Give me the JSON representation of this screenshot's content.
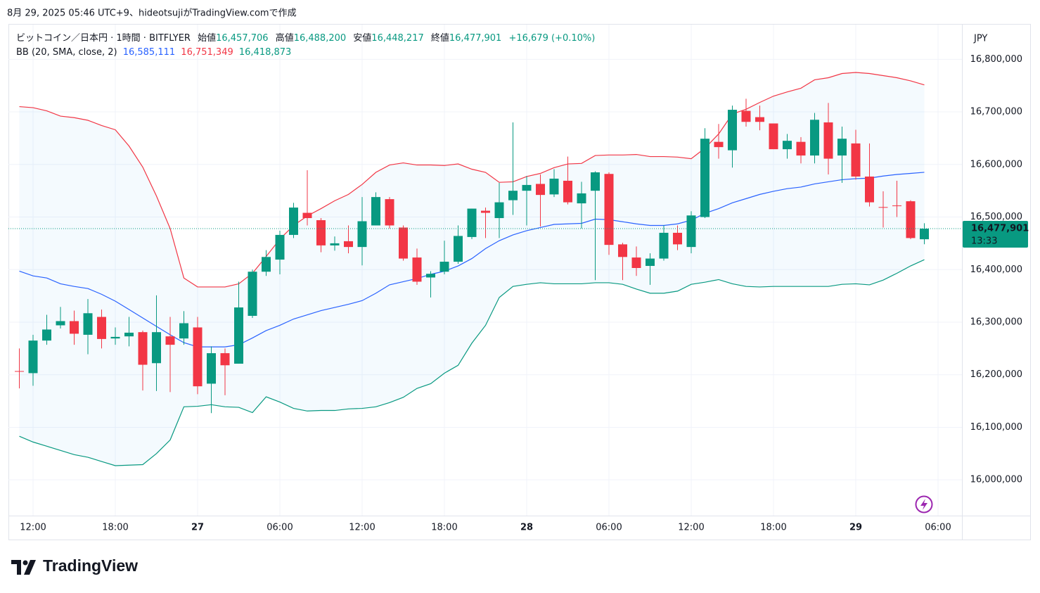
{
  "header": {
    "caption": "8月 29, 2025 05:46 UTC+9、hideotsujiがTradingView.comで作成"
  },
  "footer": {
    "brand": "TradingView"
  },
  "chart_data": {
    "type": "candlestick",
    "title": "ビットコイン／日本円 · 1時間 · BITFLYER",
    "ohlc_labels": {
      "open": "始値",
      "high": "高値",
      "low": "安値",
      "close": "終値"
    },
    "ohlc_value_labels": {
      "open": "16,457,706",
      "high": "16,488,200",
      "low": "16,448,217",
      "close": "16,477,901"
    },
    "change_label": "+16,679 (+0.10%)",
    "countdown": "13:33",
    "currency": "JPY",
    "up_color": "#089981",
    "down_color": "#f23645",
    "grid": true,
    "xlim": [
      -1.795,
      67.744
    ],
    "ylim": [
      15932000,
      16866000
    ],
    "xticks": [
      {
        "value": 0,
        "label": "12:00"
      },
      {
        "value": 6,
        "label": "18:00"
      },
      {
        "value": 12,
        "label": "27"
      },
      {
        "value": 18,
        "label": "06:00"
      },
      {
        "value": 24,
        "label": "12:00"
      },
      {
        "value": 30,
        "label": "18:00"
      },
      {
        "value": 36,
        "label": "28"
      },
      {
        "value": 42,
        "label": "06:00"
      },
      {
        "value": 48,
        "label": "12:00"
      },
      {
        "value": 54,
        "label": "18:00"
      },
      {
        "value": 60,
        "label": "29"
      },
      {
        "value": 66,
        "label": "06:00"
      }
    ],
    "yticks": [
      {
        "value": 16000000,
        "label": "16,000,000"
      },
      {
        "value": 16100000,
        "label": "16,100,000"
      },
      {
        "value": 16200000,
        "label": "16,200,000"
      },
      {
        "value": 16300000,
        "label": "16,300,000"
      },
      {
        "value": 16400000,
        "label": "16,400,000"
      },
      {
        "value": 16500000,
        "label": "16,500,000"
      },
      {
        "value": 16600000,
        "label": "16,600,000"
      },
      {
        "value": 16700000,
        "label": "16,700,000"
      },
      {
        "value": 16800000,
        "label": "16,800,000"
      }
    ],
    "x": [
      -1,
      0,
      1,
      2,
      3,
      4,
      5,
      6,
      7,
      8,
      9,
      10,
      11,
      12,
      13,
      14,
      15,
      16,
      17,
      18,
      19,
      20,
      21,
      22,
      23,
      24,
      25,
      26,
      27,
      28,
      29,
      30,
      31,
      32,
      33,
      34,
      35,
      36,
      37,
      38,
      39,
      40,
      41,
      42,
      43,
      44,
      45,
      46,
      47,
      48,
      49,
      50,
      51,
      52,
      53,
      54,
      55,
      56,
      57,
      58,
      59,
      60,
      61,
      62,
      63,
      64,
      65
    ],
    "open": [
      16207000,
      16203000,
      16265000,
      16294000,
      16302000,
      16276000,
      16310000,
      16269000,
      16273000,
      16281000,
      16222000,
      16273000,
      16269000,
      16290000,
      16183000,
      16241000,
      16221000,
      16312000,
      16396000,
      16419000,
      16466000,
      16508000,
      16494000,
      16446000,
      16454000,
      16443000,
      16484000,
      16534000,
      16480000,
      16423000,
      16385000,
      16396000,
      16415000,
      16462000,
      16512000,
      16498000,
      16532000,
      16550000,
      16563000,
      16543000,
      16569000,
      16526000,
      16550000,
      16582000,
      16448000,
      16423000,
      16407000,
      16421000,
      16470000,
      16443000,
      16500000,
      16643000,
      16627000,
      16702000,
      16690000,
      16678000,
      16629000,
      16643000,
      16617000,
      16680000,
      16617000,
      16640000,
      16577000,
      16519000,
      16522000,
      16530000,
      16457706
    ],
    "high": [
      16250000,
      16276000,
      16314000,
      16329000,
      16322000,
      16344000,
      16324000,
      16290000,
      16310000,
      16284000,
      16351000,
      16310000,
      16321000,
      16310000,
      16254000,
      16250000,
      16377000,
      16400000,
      16437000,
      16474000,
      16527000,
      16589000,
      16498000,
      16463000,
      16484000,
      16538000,
      16547000,
      16538000,
      16484000,
      16440000,
      16397000,
      16455000,
      16484000,
      16516000,
      16518000,
      16565000,
      16680000,
      16578000,
      16581000,
      16591000,
      16615000,
      16567000,
      16587000,
      16585000,
      16451000,
      16444000,
      16431000,
      16484000,
      16484000,
      16511000,
      16669000,
      16677000,
      16712000,
      16725000,
      16712000,
      16678000,
      16658000,
      16652000,
      16698000,
      16717000,
      16672000,
      16666000,
      16640000,
      16549000,
      16569000,
      16532000,
      16488200
    ],
    "low": [
      16174000,
      16179000,
      16257000,
      16288000,
      16257000,
      16239000,
      16250000,
      16257000,
      16254000,
      16170000,
      16169000,
      16167000,
      16257000,
      16163000,
      16127000,
      16161000,
      16221000,
      16308000,
      16388000,
      16391000,
      16460000,
      16484000,
      16433000,
      16436000,
      16431000,
      16408000,
      16484000,
      16478000,
      16417000,
      16371000,
      16347000,
      16391000,
      16411000,
      16458000,
      16460000,
      16460000,
      16504000,
      16484000,
      16482000,
      16538000,
      16524000,
      16478000,
      16380000,
      16428000,
      16380000,
      16388000,
      16371000,
      16417000,
      16437000,
      16431000,
      16498000,
      16611000,
      16594000,
      16672000,
      16665000,
      16629000,
      16611000,
      16602000,
      16602000,
      16581000,
      16565000,
      16571000,
      16520000,
      16480000,
      16500000,
      16458000,
      16448217
    ],
    "close": [
      16206000,
      16265000,
      16286000,
      16302000,
      16278000,
      16317000,
      16268000,
      16272000,
      16280000,
      16219000,
      16281000,
      16257000,
      16298000,
      16178000,
      16241000,
      16218000,
      16328000,
      16396000,
      16424000,
      16466000,
      16518000,
      16498000,
      16446000,
      16450000,
      16443000,
      16492000,
      16538000,
      16484000,
      16421000,
      16377000,
      16392000,
      16415000,
      16464000,
      16516000,
      16508000,
      16528000,
      16550000,
      16561000,
      16542000,
      16573000,
      16528000,
      16545000,
      16585000,
      16447000,
      16424000,
      16403000,
      16421000,
      16470000,
      16448000,
      16503000,
      16649000,
      16633000,
      16704000,
      16681000,
      16681000,
      16629000,
      16645000,
      16617000,
      16685000,
      16611000,
      16649000,
      16577000,
      16528000,
      16518000,
      16521000,
      16460000,
      16477901
    ],
    "bands": {
      "label": "BB (20, SMA, close, 2)",
      "fill_color": "#2196f3",
      "series": [
        {
          "color": "#2962ff",
          "value_label": "16,585,111",
          "values": [
            16397000,
            16388000,
            16384000,
            16373000,
            16368000,
            16364000,
            16353000,
            16340000,
            16324000,
            16308000,
            16292000,
            16276000,
            16261000,
            16253000,
            16253000,
            16253000,
            16257000,
            16270000,
            16284000,
            16294000,
            16306000,
            16314000,
            16322000,
            16328000,
            16334000,
            16341000,
            16355000,
            16371000,
            16377000,
            16383000,
            16391000,
            16397000,
            16407000,
            16421000,
            16440000,
            16455000,
            16466000,
            16474000,
            16480000,
            16486000,
            16487000,
            16488000,
            16496000,
            16495000,
            16491000,
            16487000,
            16484000,
            16484000,
            16487000,
            16494000,
            16507000,
            16516000,
            16527000,
            16535000,
            16543000,
            16549000,
            16554000,
            16557000,
            16563000,
            16567000,
            16571000,
            16573000,
            16574000,
            16578000,
            16581000,
            16583000,
            16585111
          ]
        },
        {
          "color": "#f23645",
          "value_label": "16,751,349",
          "values": [
            16710000,
            16708000,
            16702000,
            16692000,
            16689000,
            16684000,
            16674000,
            16666000,
            16635000,
            16595000,
            16540000,
            16478000,
            16384000,
            16367000,
            16367000,
            16367000,
            16373000,
            16393000,
            16425000,
            16458000,
            16484000,
            16502000,
            16516000,
            16531000,
            16543000,
            16562000,
            16585000,
            16599000,
            16603000,
            16599000,
            16599000,
            16598000,
            16601000,
            16591000,
            16585000,
            16566000,
            16567000,
            16577000,
            16583000,
            16594000,
            16601000,
            16602000,
            16617000,
            16618000,
            16618000,
            16619000,
            16615000,
            16615000,
            16614000,
            16611000,
            16631000,
            16658000,
            16696000,
            16705000,
            16718000,
            16730000,
            16738000,
            16745000,
            16761000,
            16765000,
            16773000,
            16775000,
            16773000,
            16769000,
            16765000,
            16759000,
            16751349
          ]
        },
        {
          "color": "#089981",
          "value_label": "16,418,873",
          "values": [
            16083000,
            16072000,
            16064000,
            16056000,
            16048000,
            16043000,
            16035000,
            16027000,
            16028000,
            16029000,
            16050000,
            16076000,
            16139000,
            16140000,
            16143000,
            16139000,
            16138000,
            16128000,
            16158000,
            16148000,
            16136000,
            16131000,
            16132000,
            16132000,
            16135000,
            16136000,
            16139000,
            16147000,
            16157000,
            16174000,
            16183000,
            16203000,
            16218000,
            16260000,
            16294000,
            16347000,
            16368000,
            16372000,
            16375000,
            16373000,
            16373000,
            16373000,
            16375000,
            16375000,
            16372000,
            16363000,
            16355000,
            16355000,
            16359000,
            16372000,
            16376000,
            16381000,
            16373000,
            16368000,
            16367000,
            16368000,
            16368000,
            16368000,
            16368000,
            16368000,
            16372000,
            16373000,
            16371000,
            16380000,
            16393000,
            16407000,
            16418873
          ]
        }
      ]
    }
  }
}
